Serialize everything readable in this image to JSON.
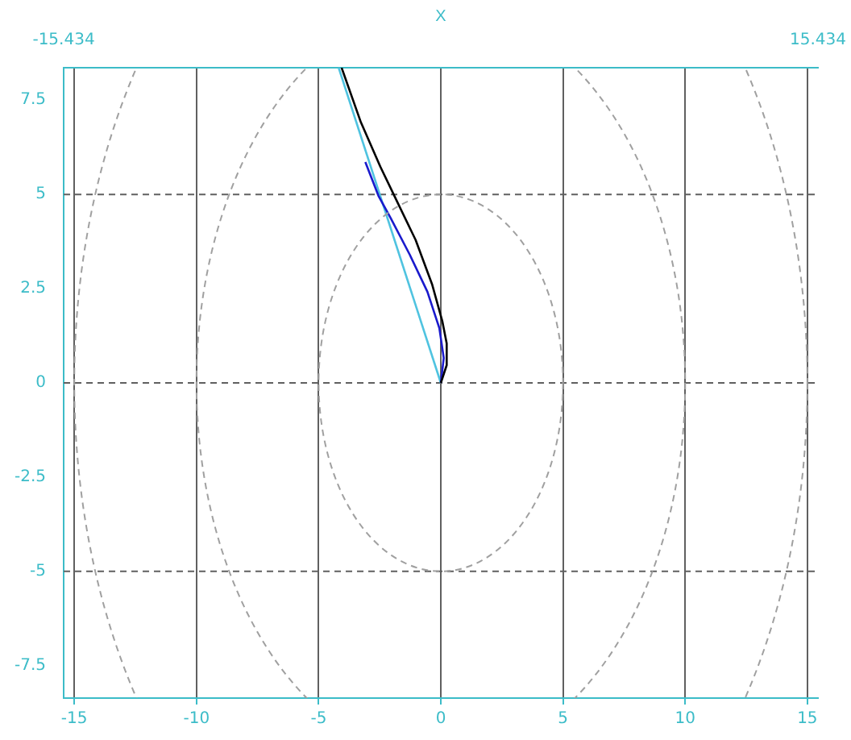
{
  "chart_data": {
    "type": "line",
    "xlabel": null,
    "x2label": "X",
    "xlim": [
      -15.434,
      15.434
    ],
    "xticks": [
      -15,
      -10,
      -5,
      0,
      5,
      10,
      15
    ],
    "x2lim": [
      -15.434,
      15.434
    ],
    "x2ticks": [
      -15.434,
      15.434
    ],
    "ylim": [
      -8.36,
      8.36
    ],
    "yticks": [
      -7.5,
      -5,
      -2.5,
      0,
      2.5,
      5,
      7.5
    ],
    "grid": "x",
    "legend": false,
    "marker": "none",
    "ref_lines": [
      {
        "axis": "y",
        "value": -5,
        "color": "#606060",
        "line_style": "dashed"
      },
      {
        "axis": "y",
        "value": 0,
        "color": "#606060",
        "line_style": "dashed"
      },
      {
        "axis": "y",
        "value": 5,
        "color": "#606060",
        "line_style": "dashed"
      }
    ],
    "series": [
      {
        "color": "#000000",
        "line_style": "solid",
        "x": [
          0,
          0.24,
          0.24,
          0.06,
          -0.36,
          -1.03,
          -1.76,
          -2.48,
          -3.27,
          -4.06
        ],
        "values": [
          0,
          0.47,
          1.05,
          1.64,
          2.62,
          3.79,
          4.77,
          5.74,
          6.91,
          8.36
        ]
      },
      {
        "color": "#1a1acc",
        "line_style": "solid",
        "x": [
          0,
          0.12,
          -0.06,
          -0.55,
          -1.27,
          -2.06,
          -2.55,
          -3.09
        ],
        "values": [
          0,
          0.66,
          1.45,
          2.42,
          3.4,
          4.38,
          4.96,
          5.86
        ]
      },
      {
        "color": "#4fc3e0",
        "line_style": "solid",
        "x": [
          0,
          -4.18
        ],
        "values": [
          0,
          8.36
        ]
      }
    ]
  }
}
